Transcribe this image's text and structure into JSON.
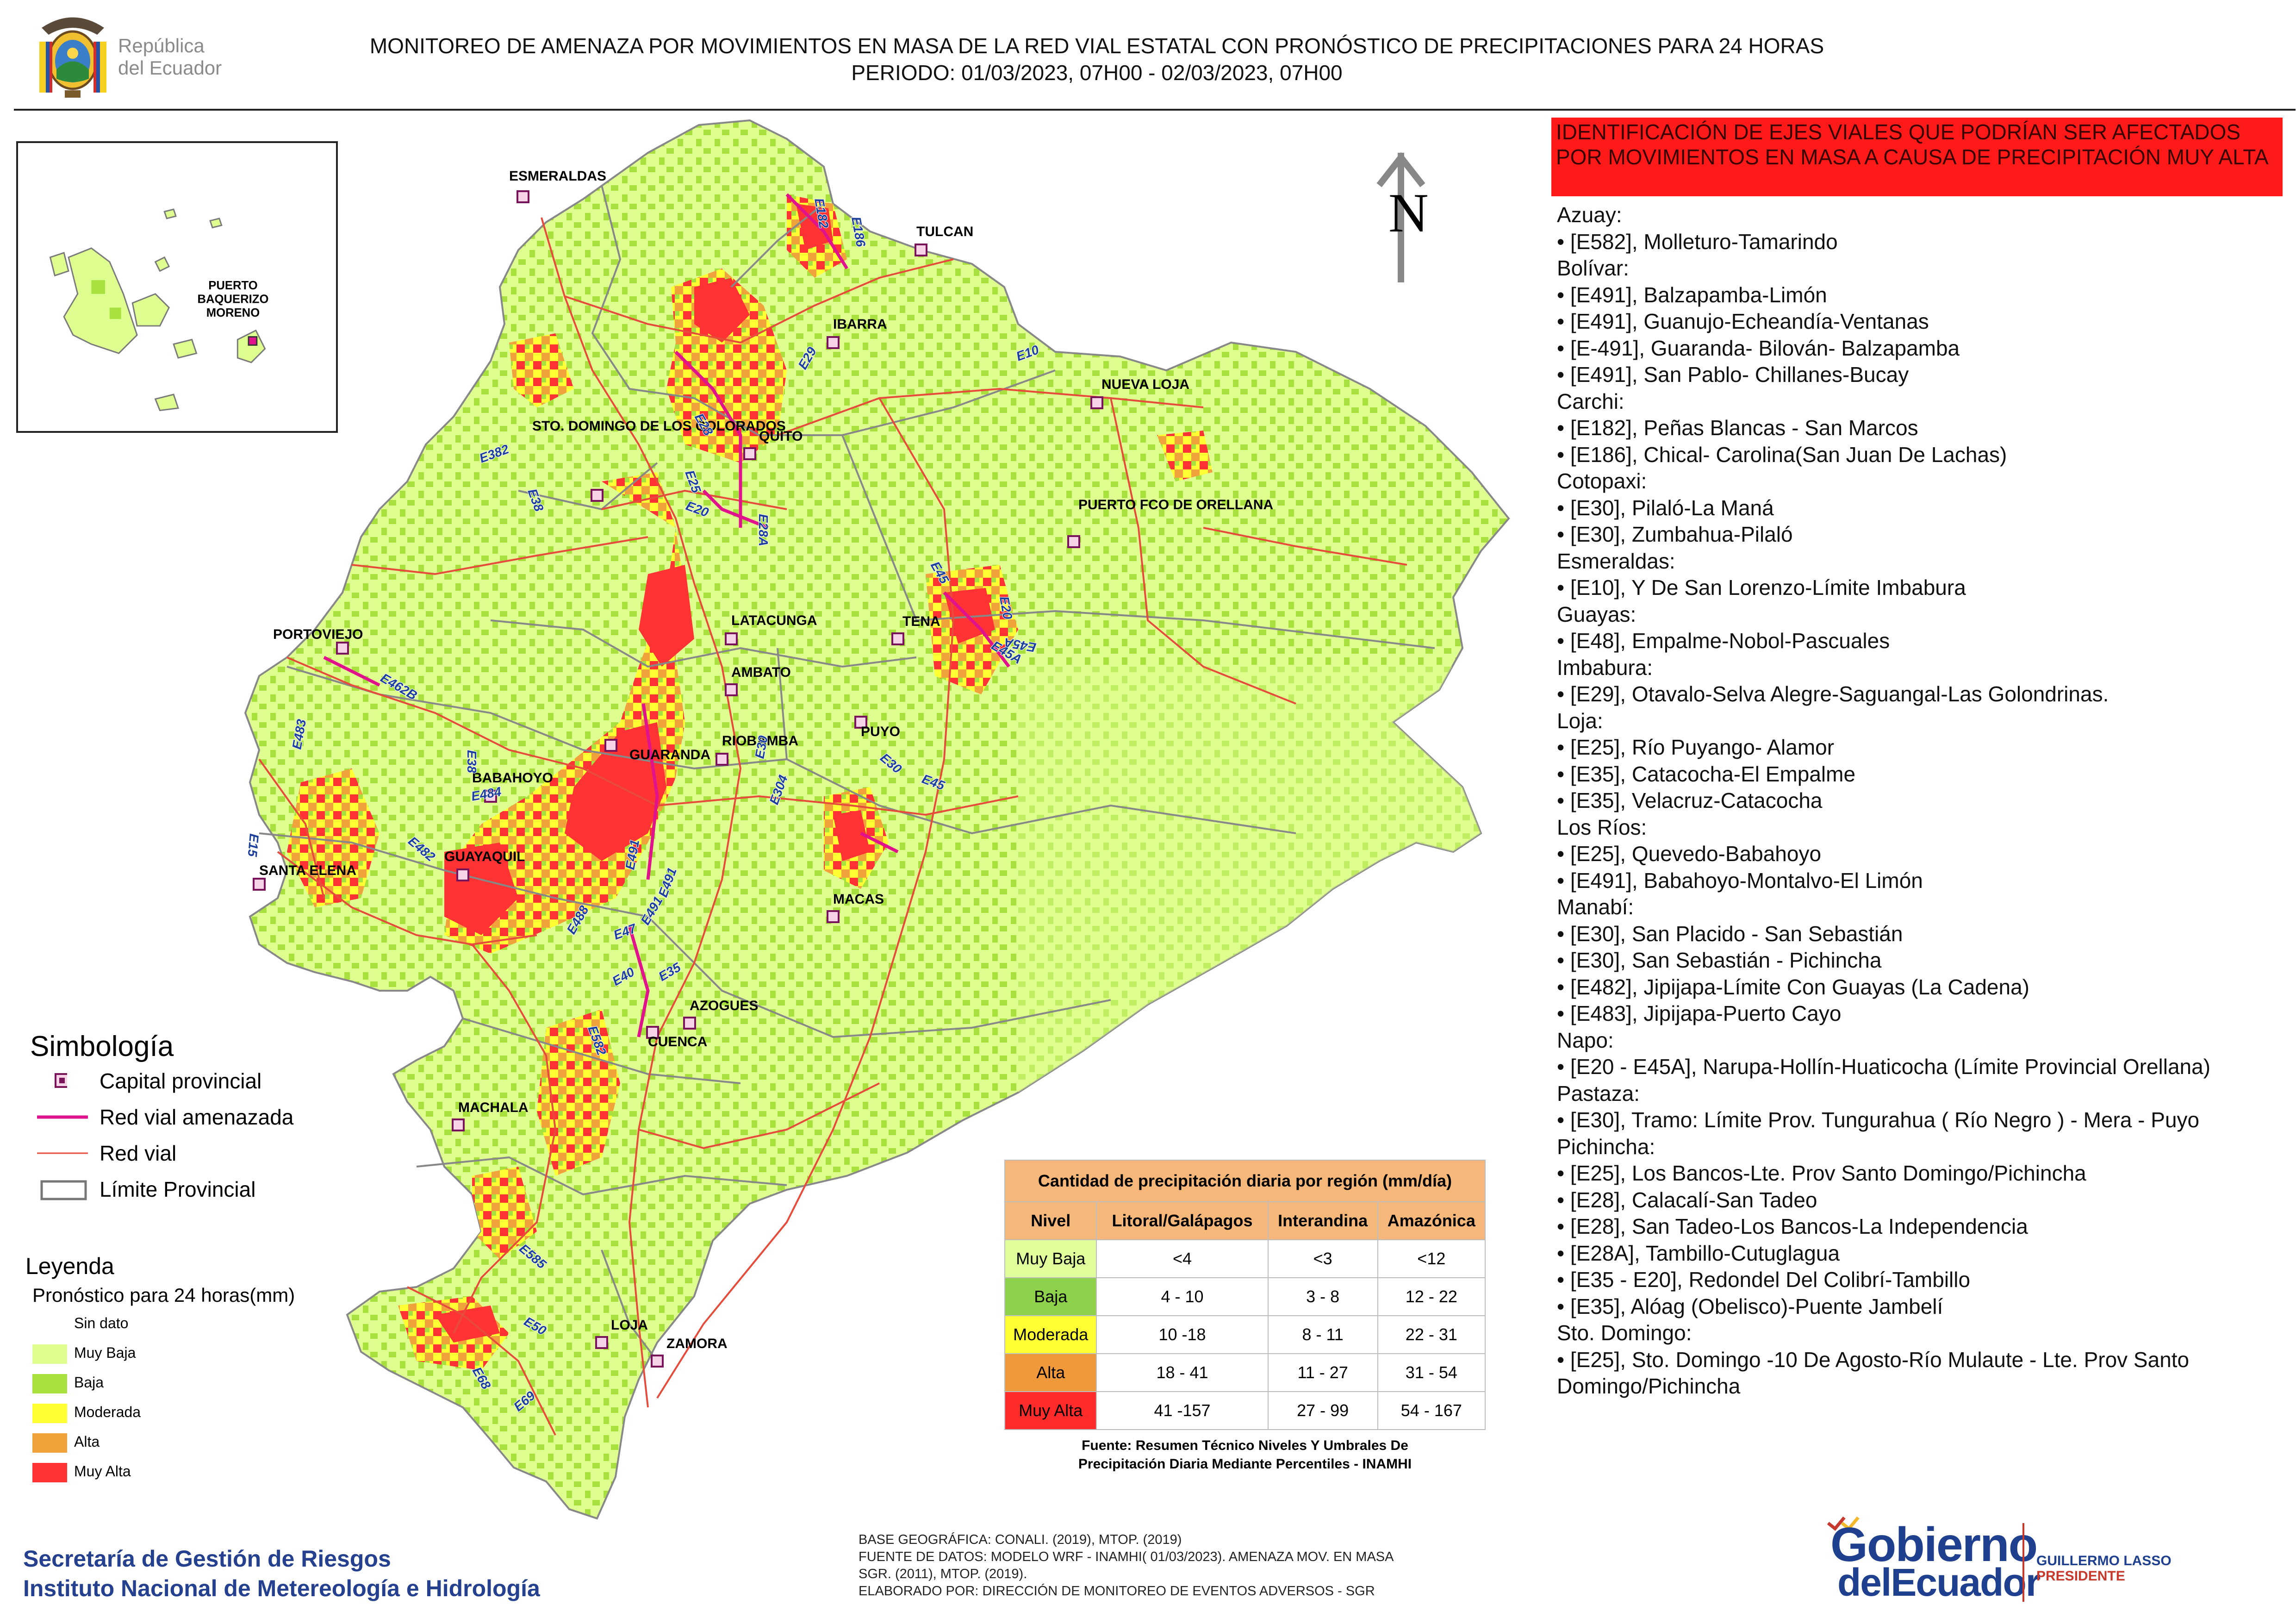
{
  "header": {
    "logo_text_1": "República",
    "logo_text_2": "del Ecuador",
    "title_line_1": "MONITOREO DE AMENAZA POR MOVIMIENTOS EN MASA DE LA RED VIAL  ESTATAL  CON PRONÓSTICO  DE  PRECIPITACIONES PARA 24 HORAS",
    "title_line_2": "PERIODO: 01/03/2023, 07H00 - 02/03/2023, 07H00"
  },
  "map": {
    "north_label": "N",
    "inset_city": [
      "PUERTO",
      "BAQUERIZO",
      "MORENO"
    ],
    "cities": [
      {
        "name": "ESMERALDAS"
      },
      {
        "name": "TULCAN"
      },
      {
        "name": "IBARRA"
      },
      {
        "name": "NUEVA LOJA"
      },
      {
        "name": "QUITO"
      },
      {
        "name": "STO. DOMINGO DE LOS COLORADOS"
      },
      {
        "name": "PUERTO FCO DE ORELLANA"
      },
      {
        "name": "LATACUNGA"
      },
      {
        "name": "TENA"
      },
      {
        "name": "PORTOVIEJO"
      },
      {
        "name": "AMBATO"
      },
      {
        "name": "PUYO"
      },
      {
        "name": "GUARANDA"
      },
      {
        "name": "RIOBAMBA"
      },
      {
        "name": "BABAHOYO"
      },
      {
        "name": "SANTA ELENA"
      },
      {
        "name": "GUAYAQUIL"
      },
      {
        "name": "MACAS"
      },
      {
        "name": "AZOGUES"
      },
      {
        "name": "CUENCA"
      },
      {
        "name": "MACHALA"
      },
      {
        "name": "LOJA"
      },
      {
        "name": "ZAMORA"
      }
    ],
    "roads": [
      "E182",
      "E186",
      "E10",
      "E29",
      "E28",
      "E382",
      "E25",
      "E20",
      "E28A",
      "E38",
      "E45",
      "E20",
      "E45A",
      "E45A",
      "E462B",
      "E483",
      "E38",
      "E15",
      "E484",
      "E30",
      "E304",
      "E30",
      "E45",
      "E482",
      "E491",
      "E491",
      "E491",
      "E488",
      "E47",
      "E40",
      "E35",
      "E582",
      "E585",
      "E50",
      "E68",
      "E69"
    ]
  },
  "legend": {
    "simbologia_title": "Simbología",
    "simbologia": [
      {
        "label": "Capital provincial"
      },
      {
        "label": "Red vial amenazada",
        "color": "#e0138c"
      },
      {
        "label": "Red vial",
        "color": "#e64c3c"
      },
      {
        "label": "Límite Provincial"
      }
    ],
    "leyenda_title": "Leyenda",
    "leyenda_sub": "Pronóstico para 24 horas(mm)",
    "levels": [
      {
        "label": "Sin dato",
        "color": "#ffffff"
      },
      {
        "label": "Muy Baja",
        "color": "#deff8f"
      },
      {
        "label": "Baja",
        "color": "#a8e03d"
      },
      {
        "label": "Moderada",
        "color": "#ffff33"
      },
      {
        "label": "Alta",
        "color": "#f0a33b"
      },
      {
        "label": "Muy Alta",
        "color": "#ff3333"
      }
    ]
  },
  "precip_table": {
    "title": "Cantidad de precipitación diaria por región (mm/día)",
    "headers": [
      "Nivel",
      "Litoral/Galápagos",
      "Interandina",
      "Amazónica"
    ],
    "rows": [
      {
        "level": "Muy Baja",
        "color": "#e0ff9c",
        "litoral": "<4",
        "interandina": "<3",
        "amazonica": "<12"
      },
      {
        "level": "Baja",
        "color": "#8ed14a",
        "litoral": "4 - 10",
        "interandina": "3 - 8",
        "amazonica": "12 - 22"
      },
      {
        "level": "Moderada",
        "color": "#ffff33",
        "litoral": "10 -18",
        "interandina": "8 - 11",
        "amazonica": "22 - 31"
      },
      {
        "level": "Alta",
        "color": "#f0993a",
        "litoral": "18 - 41",
        "interandina": "11 - 27",
        "amazonica": "31 - 54"
      },
      {
        "level": "Muy Alta",
        "color": "#ff2a2a",
        "litoral": "41 -157",
        "interandina": "27 - 99",
        "amazonica": "54 - 167"
      }
    ],
    "source_1": "Fuente: Resumen Técnico Niveles Y Umbrales De",
    "source_2": "Precipitación Diaria Mediante Percentiles - INAMHI"
  },
  "panel": {
    "banner": "IDENTIFICACIÓN DE EJES VIALES QUE PODRÍAN SER AFECTADOS POR MOVIMIENTOS EN MASA A CAUSA DE PRECIPITACIÓN MUY ALTA",
    "lines": [
      {
        "type": "prov",
        "text": "Azuay:"
      },
      {
        "type": "item",
        "text": "• [E582], Molleturo-Tamarindo"
      },
      {
        "type": "prov",
        "text": "Bolívar:"
      },
      {
        "type": "item",
        "text": "• [E491], Balzapamba-Limón"
      },
      {
        "type": "item",
        "text": "• [E491], Guanujo-Echeandía-Ventanas"
      },
      {
        "type": "item",
        "text": "• [E-491], Guaranda- Bilován- Balzapamba"
      },
      {
        "type": "item",
        "text": "• [E491], San Pablo- Chillanes-Bucay"
      },
      {
        "type": "prov",
        "text": "Carchi:"
      },
      {
        "type": "item",
        "text": "• [E182], Peñas Blancas - San Marcos"
      },
      {
        "type": "item",
        "text": "• [E186], Chical- Carolina(San Juan De Lachas)"
      },
      {
        "type": "prov",
        "text": "Cotopaxi:"
      },
      {
        "type": "item",
        "text": "• [E30], Pilaló-La Maná"
      },
      {
        "type": "item",
        "text": "• [E30], Zumbahua-Pilaló"
      },
      {
        "type": "prov",
        "text": "Esmeraldas:"
      },
      {
        "type": "item",
        "text": "• [E10], Y De San Lorenzo-Límite Imbabura"
      },
      {
        "type": "prov",
        "text": "Guayas:"
      },
      {
        "type": "item",
        "text": "• [E48], Empalme-Nobol-Pascuales"
      },
      {
        "type": "prov",
        "text": "Imbabura:"
      },
      {
        "type": "item",
        "text": "• [E29], Otavalo-Selva Alegre-Saguangal-Las Golondrinas."
      },
      {
        "type": "prov",
        "text": "Loja:"
      },
      {
        "type": "item",
        "text": "• [E25], Río Puyango- Alamor"
      },
      {
        "type": "item",
        "text": "• [E35], Catacocha-El Empalme"
      },
      {
        "type": "item",
        "text": "• [E35], Velacruz-Catacocha"
      },
      {
        "type": "prov",
        "text": "Los Ríos:"
      },
      {
        "type": "item",
        "text": "• [E25], Quevedo-Babahoyo"
      },
      {
        "type": "item",
        "text": "• [E491], Babahoyo-Montalvo-El Limón"
      },
      {
        "type": "prov",
        "text": "Manabí:"
      },
      {
        "type": "item",
        "text": "• [E30], San Placido - San Sebastián"
      },
      {
        "type": "item",
        "text": "• [E30], San Sebastián - Pichincha"
      },
      {
        "type": "item",
        "text": "• [E482], Jipijapa-Límite Con Guayas (La Cadena)"
      },
      {
        "type": "item",
        "text": "• [E483], Jipijapa-Puerto Cayo"
      },
      {
        "type": "prov",
        "text": "Napo:"
      },
      {
        "type": "item",
        "text": "• [E20 - E45A], Narupa-Hollín-Huaticocha (Límite Provincial Orellana)"
      },
      {
        "type": "prov",
        "text": "Pastaza:"
      },
      {
        "type": "item",
        "text": "• [E30], Tramo: Límite Prov. Tungurahua ( Río Negro ) - Mera - Puyo"
      },
      {
        "type": "prov",
        "text": "Pichincha:"
      },
      {
        "type": "item",
        "text": "• [E25], Los Bancos-Lte. Prov Santo Domingo/Pichincha"
      },
      {
        "type": "item",
        "text": "• [E28], Calacalí-San Tadeo"
      },
      {
        "type": "item",
        "text": "• [E28], San Tadeo-Los Bancos-La Independencia"
      },
      {
        "type": "item",
        "text": "• [E28A], Tambillo-Cutuglagua"
      },
      {
        "type": "item",
        "text": "• [E35 - E20], Redondel Del Colibrí-Tambillo"
      },
      {
        "type": "item",
        "text": "• [E35], Alóag (Obelisco)-Puente Jambelí"
      },
      {
        "type": "prov",
        "text": "Sto. Domingo:"
      },
      {
        "type": "item",
        "text": "• [E25], Sto. Domingo -10 De Agosto-Río Mulaute - Lte. Prov Santo Domingo/Pichincha"
      }
    ]
  },
  "footer": {
    "sgr_line_1": "Secretaría de Gestión de Riesgos",
    "sgr_line_2": "Instituto Nacional de Metereología e Hidrología",
    "base_1": "BASE GEOGRÁFICA: CONALI. (2019), MTOP. (2019)",
    "base_2": "FUENTE DE DATOS: MODELO WRF - INAMHI( 01/03/2023).  AMENAZA MOV. EN MASA",
    "base_3": "SGR. (2011), MTOP. (2019).",
    "base_4": "ELABORADO POR: DIRECCIÓN DE MONITOREO DE EVENTOS ADVERSOS - SGR",
    "gob_word_1": "Gobierno",
    "gob_word_2": "delEcuador",
    "gob_name": "GUILLERMO LASSO",
    "gob_role": "PRESIDENTE"
  }
}
